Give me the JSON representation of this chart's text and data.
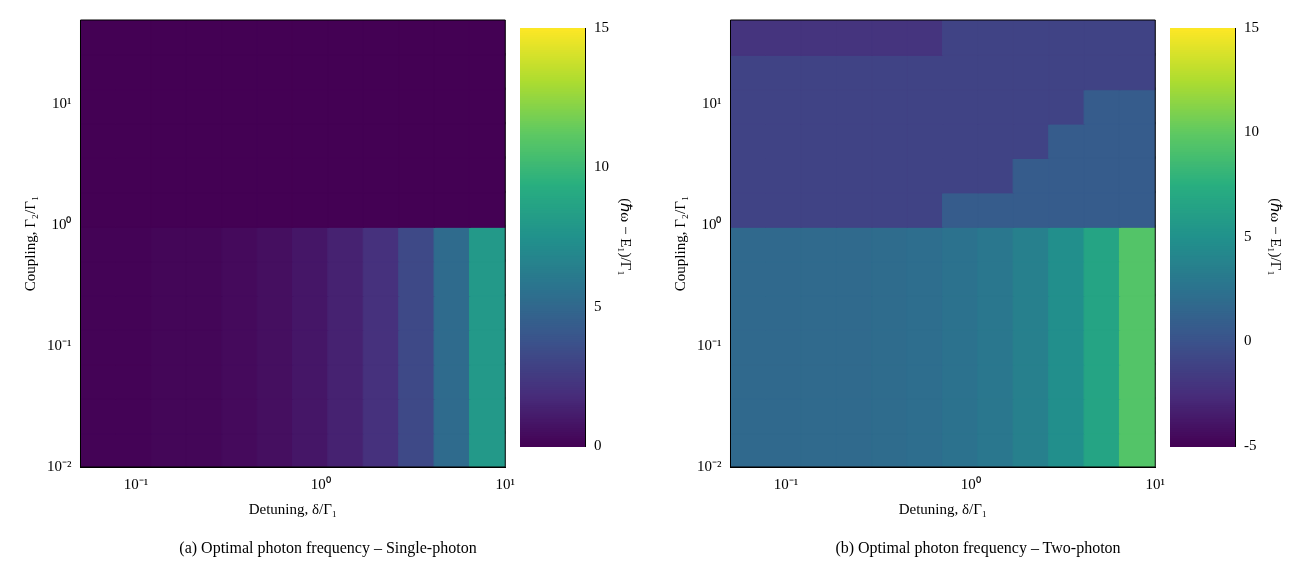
{
  "chart_data": [
    {
      "type": "scatter",
      "marker": "square",
      "xlabel": "Detuning, δ/Γ₁",
      "ylabel": "Coupling, Γ₂/Γ₁",
      "clabel": "(ℏω − E₁)/Γ₁",
      "annotations": [
        "(a) Optimal photon frequency – Single-photon"
      ],
      "log": "xy",
      "x": [
        0.062,
        0.097,
        0.151,
        0.234,
        0.365,
        0.567,
        0.882,
        1.37,
        2.13,
        3.32,
        5.16,
        8.02
      ],
      "series": [
        {
          "values": [
            36,
            36,
            36,
            36,
            36,
            36,
            36,
            36,
            36,
            36,
            36,
            36
          ],
          "cvalues": [
            0,
            0,
            0,
            0,
            0,
            0,
            0,
            0,
            0,
            0,
            0,
            0
          ],
          "colors": [
            "#440154",
            "#440154",
            "#440154",
            "#440154",
            "#440154",
            "#440154",
            "#440154",
            "#440154",
            "#440154",
            "#440154",
            "#440154",
            "#440154"
          ]
        },
        {
          "values": [
            18.7,
            18.7,
            18.7,
            18.7,
            18.7,
            18.7,
            18.7,
            18.7,
            18.7,
            18.7,
            18.7,
            18.7
          ],
          "cvalues": [
            0,
            0,
            0,
            0,
            0,
            0,
            0,
            0,
            0,
            0,
            0,
            0
          ],
          "colors": [
            "#440154",
            "#440154",
            "#440154",
            "#440154",
            "#440154",
            "#440154",
            "#440154",
            "#440154",
            "#440154",
            "#440154",
            "#440154",
            "#440154"
          ]
        },
        {
          "values": [
            9.72,
            9.72,
            9.72,
            9.72,
            9.72,
            9.72,
            9.72,
            9.72,
            9.72,
            9.72,
            9.72,
            9.72
          ],
          "cvalues": [
            0,
            0,
            0,
            0,
            0,
            0,
            0,
            0,
            0,
            0,
            0,
            0
          ],
          "colors": [
            "#440154",
            "#440154",
            "#440154",
            "#440154",
            "#440154",
            "#440154",
            "#440154",
            "#440154",
            "#440154",
            "#440154",
            "#440154",
            "#440154"
          ]
        },
        {
          "values": [
            5.05,
            5.05,
            5.05,
            5.05,
            5.05,
            5.05,
            5.05,
            5.05,
            5.05,
            5.05,
            5.05,
            5.05
          ],
          "cvalues": [
            0,
            0,
            0,
            0,
            0,
            0,
            0,
            0,
            0,
            0,
            0,
            0
          ],
          "colors": [
            "#440154",
            "#440154",
            "#440154",
            "#440154",
            "#440154",
            "#440154",
            "#440154",
            "#440154",
            "#440154",
            "#440154",
            "#440154",
            "#440154"
          ]
        },
        {
          "values": [
            2.62,
            2.62,
            2.62,
            2.62,
            2.62,
            2.62,
            2.62,
            2.62,
            2.62,
            2.62,
            2.62,
            2.62
          ],
          "cvalues": [
            0,
            0,
            0,
            0,
            0,
            0,
            0,
            0,
            0,
            0,
            0,
            0
          ],
          "colors": [
            "#440154",
            "#440154",
            "#440154",
            "#440154",
            "#440154",
            "#440154",
            "#440154",
            "#440154",
            "#440154",
            "#440154",
            "#440154",
            "#440154"
          ]
        },
        {
          "values": [
            1.36,
            1.36,
            1.36,
            1.36,
            1.36,
            1.36,
            1.36,
            1.36,
            1.36,
            1.36,
            1.36,
            1.36
          ],
          "cvalues": [
            0,
            0,
            0,
            0,
            0,
            0,
            0,
            0,
            0,
            0,
            0,
            0
          ],
          "colors": [
            "#440154",
            "#440154",
            "#440154",
            "#440154",
            "#440154",
            "#440154",
            "#440154",
            "#440154",
            "#440154",
            "#440154",
            "#440154",
            "#440154"
          ]
        },
        {
          "values": [
            0.708,
            0.708,
            0.708,
            0.708,
            0.708,
            0.708,
            0.708,
            0.708,
            0.708,
            0.708,
            0.708,
            0.708
          ],
          "cvalues": [
            0.1,
            0.1,
            0.2,
            0.2,
            0.4,
            0.6,
            0.9,
            1.4,
            2.1,
            3.3,
            5.2,
            8
          ],
          "colors": [
            "#440356",
            "#440356",
            "#440658",
            "#440658",
            "#450a5c",
            "#450f60",
            "#451667",
            "#462271",
            "#46317d",
            "#3e4987",
            "#2f6b8d",
            "#239989"
          ]
        },
        {
          "values": [
            0.367,
            0.367,
            0.367,
            0.367,
            0.367,
            0.367,
            0.367,
            0.367,
            0.367,
            0.367,
            0.367,
            0.367
          ],
          "cvalues": [
            0.1,
            0.1,
            0.2,
            0.2,
            0.4,
            0.6,
            0.9,
            1.4,
            2.1,
            3.3,
            5.2,
            8
          ],
          "colors": [
            "#440356",
            "#440356",
            "#440658",
            "#440658",
            "#450a5c",
            "#450f60",
            "#451667",
            "#462271",
            "#46317d",
            "#3e4987",
            "#2f6b8d",
            "#239989"
          ]
        },
        {
          "values": [
            0.191,
            0.191,
            0.191,
            0.191,
            0.191,
            0.191,
            0.191,
            0.191,
            0.191,
            0.191,
            0.191,
            0.191
          ],
          "cvalues": [
            0.1,
            0.1,
            0.2,
            0.2,
            0.4,
            0.6,
            0.9,
            1.4,
            2.1,
            3.3,
            5.2,
            8
          ],
          "colors": [
            "#440356",
            "#440356",
            "#440658",
            "#440658",
            "#450a5c",
            "#450f60",
            "#451667",
            "#462271",
            "#46317d",
            "#3e4987",
            "#2f6b8d",
            "#239989"
          ]
        },
        {
          "values": [
            0.0991,
            0.0991,
            0.0991,
            0.0991,
            0.0991,
            0.0991,
            0.0991,
            0.0991,
            0.0991,
            0.0991,
            0.0991,
            0.0991
          ],
          "cvalues": [
            0.1,
            0.1,
            0.2,
            0.2,
            0.4,
            0.6,
            0.9,
            1.4,
            2.1,
            3.3,
            5.2,
            8
          ],
          "colors": [
            "#440356",
            "#440356",
            "#440658",
            "#440658",
            "#450a5c",
            "#450f60",
            "#451667",
            "#462271",
            "#46317d",
            "#3e4987",
            "#2f6b8d",
            "#239989"
          ]
        },
        {
          "values": [
            0.0515,
            0.0515,
            0.0515,
            0.0515,
            0.0515,
            0.0515,
            0.0515,
            0.0515,
            0.0515,
            0.0515,
            0.0515,
            0.0515
          ],
          "cvalues": [
            0.1,
            0.1,
            0.2,
            0.2,
            0.4,
            0.6,
            0.9,
            1.4,
            2.1,
            3.3,
            5.2,
            8
          ],
          "colors": [
            "#440356",
            "#440356",
            "#440658",
            "#440658",
            "#450a5c",
            "#450f60",
            "#451667",
            "#462271",
            "#46317d",
            "#3e4987",
            "#2f6b8d",
            "#239989"
          ]
        },
        {
          "values": [
            0.0267,
            0.0267,
            0.0267,
            0.0267,
            0.0267,
            0.0267,
            0.0267,
            0.0267,
            0.0267,
            0.0267,
            0.0267,
            0.0267
          ],
          "cvalues": [
            0.1,
            0.1,
            0.2,
            0.2,
            0.4,
            0.6,
            0.9,
            1.4,
            2.1,
            3.3,
            5.2,
            8
          ],
          "colors": [
            "#440356",
            "#440356",
            "#440658",
            "#440658",
            "#450a5c",
            "#450f60",
            "#451667",
            "#462271",
            "#46317d",
            "#3e4987",
            "#2f6b8d",
            "#239989"
          ]
        },
        {
          "values": [
            0.0139,
            0.0139,
            0.0139,
            0.0139,
            0.0139,
            0.0139,
            0.0139,
            0.0139,
            0.0139,
            0.0139,
            0.0139,
            0.0139
          ],
          "cvalues": [
            0.1,
            0.1,
            0.2,
            0.2,
            0.4,
            0.6,
            0.9,
            1.4,
            2.1,
            3.3,
            5.2,
            8
          ],
          "colors": [
            "#440356",
            "#440356",
            "#440658",
            "#440658",
            "#450a5c",
            "#450f60",
            "#451667",
            "#462271",
            "#46317d",
            "#3e4987",
            "#2f6b8d",
            "#239989"
          ]
        }
      ],
      "clim": [
        0,
        15
      ],
      "cticks": [
        0,
        5,
        10,
        15
      ],
      "xlim": [
        0.05,
        10
      ],
      "ylim": [
        0.01,
        50
      ],
      "xticks": [
        {
          "value": 0.1,
          "label": "10⁻¹"
        },
        {
          "value": 1,
          "label": "10⁰"
        },
        {
          "value": 10,
          "label": "10¹"
        }
      ],
      "yticks": [
        {
          "value": 0.01,
          "label": "10⁻²"
        },
        {
          "value": 0.1,
          "label": "10⁻¹"
        },
        {
          "value": 1,
          "label": "10⁰"
        },
        {
          "value": 10,
          "label": "10¹"
        }
      ]
    },
    {
      "type": "scatter",
      "marker": "square",
      "xlabel": "Detuning, δ/Γ₁",
      "ylabel": "Coupling, Γ₂/Γ₁",
      "clabel": "(ℏω − E₁)/Γ₁",
      "annotations": [
        "(b) Optimal photon frequency – Two-photon"
      ],
      "log": "xy",
      "x": [
        0.062,
        0.097,
        0.151,
        0.234,
        0.365,
        0.567,
        0.882,
        1.37,
        2.13,
        3.32,
        5.16,
        8.02
      ],
      "series": [
        {
          "values": [
            36,
            36,
            36,
            36,
            36,
            36,
            36,
            36,
            36,
            36,
            36,
            36
          ],
          "cvalues": [
            -2,
            -2,
            -2,
            -2,
            -2,
            -2,
            -1,
            -1,
            -1,
            -1,
            -1,
            -1
          ],
          "colors": [
            "#45347e",
            "#45347e",
            "#45347e",
            "#45347e",
            "#45347e",
            "#45347e",
            "#404385",
            "#404385",
            "#404385",
            "#404385",
            "#404385",
            "#404385"
          ]
        },
        {
          "values": [
            18.7,
            18.7,
            18.7,
            18.7,
            18.7,
            18.7,
            18.7,
            18.7,
            18.7,
            18.7,
            18.7,
            18.7
          ],
          "cvalues": [
            -1,
            -1,
            -1,
            -1,
            -1,
            -1,
            -1,
            -1,
            -1,
            -1,
            -1,
            -1
          ],
          "colors": [
            "#404385",
            "#404385",
            "#404385",
            "#404385",
            "#404385",
            "#404385",
            "#404385",
            "#404385",
            "#404385",
            "#404385",
            "#404385",
            "#404385"
          ]
        },
        {
          "values": [
            9.72,
            9.72,
            9.72,
            9.72,
            9.72,
            9.72,
            9.72,
            9.72,
            9.72,
            9.72,
            9.72,
            9.72
          ],
          "cvalues": [
            -1,
            -1,
            -1,
            -1,
            -1,
            -1,
            -1,
            -1,
            -1,
            -1,
            0.8,
            0.8
          ],
          "colors": [
            "#404385",
            "#404385",
            "#404385",
            "#404385",
            "#404385",
            "#404385",
            "#404385",
            "#404385",
            "#404385",
            "#404385",
            "#365c8c",
            "#365c8c"
          ]
        },
        {
          "values": [
            5.05,
            5.05,
            5.05,
            5.05,
            5.05,
            5.05,
            5.05,
            5.05,
            5.05,
            5.05,
            5.05,
            5.05
          ],
          "cvalues": [
            -1,
            -1,
            -1,
            -1,
            -1,
            -1,
            -1,
            -1,
            -1,
            0.8,
            0.8,
            0.8
          ],
          "colors": [
            "#404385",
            "#404385",
            "#404385",
            "#404385",
            "#404385",
            "#404385",
            "#404385",
            "#404385",
            "#404385",
            "#365c8c",
            "#365c8c",
            "#365c8c"
          ]
        },
        {
          "values": [
            2.62,
            2.62,
            2.62,
            2.62,
            2.62,
            2.62,
            2.62,
            2.62,
            2.62,
            2.62,
            2.62,
            2.62
          ],
          "cvalues": [
            -1,
            -1,
            -1,
            -1,
            -1,
            -1,
            -1,
            -1,
            0.8,
            0.8,
            0.8,
            0.8
          ],
          "colors": [
            "#404385",
            "#404385",
            "#404385",
            "#404385",
            "#404385",
            "#404385",
            "#404385",
            "#404385",
            "#365c8c",
            "#365c8c",
            "#365c8c",
            "#365c8c"
          ]
        },
        {
          "values": [
            1.36,
            1.36,
            1.36,
            1.36,
            1.36,
            1.36,
            1.36,
            1.36,
            1.36,
            1.36,
            1.36,
            1.36
          ],
          "cvalues": [
            -1,
            -1,
            -1,
            -1,
            -1,
            -1,
            0.8,
            0.8,
            0.8,
            0.8,
            0.8,
            0.8
          ],
          "colors": [
            "#404385",
            "#404385",
            "#404385",
            "#404385",
            "#404385",
            "#404385",
            "#365c8c",
            "#365c8c",
            "#365c8c",
            "#365c8c",
            "#365c8c",
            "#365c8c"
          ]
        },
        {
          "values": [
            0.708,
            0.708,
            0.708,
            0.708,
            0.708,
            0.708,
            0.708,
            0.708,
            0.708,
            0.708,
            0.708,
            0.708
          ],
          "cvalues": [
            1.8,
            1.8,
            1.9,
            1.9,
            2,
            2.2,
            2.5,
            2.9,
            3.6,
            4.8,
            6.6,
            9.5
          ],
          "colors": [
            "#30698d",
            "#30698d",
            "#306a8d",
            "#306a8d",
            "#2f6c8d",
            "#2e6e8e",
            "#2c728e",
            "#2a778e",
            "#27808d",
            "#228f8c",
            "#25a484",
            "#53c468"
          ]
        },
        {
          "values": [
            0.367,
            0.367,
            0.367,
            0.367,
            0.367,
            0.367,
            0.367,
            0.367,
            0.367,
            0.367,
            0.367,
            0.367
          ],
          "cvalues": [
            1.8,
            1.8,
            1.9,
            1.9,
            2,
            2.2,
            2.5,
            2.9,
            3.6,
            4.8,
            6.6,
            9.5
          ],
          "colors": [
            "#30698d",
            "#30698d",
            "#306a8d",
            "#306a8d",
            "#2f6c8d",
            "#2e6e8e",
            "#2c728e",
            "#2a778e",
            "#27808d",
            "#228f8c",
            "#25a484",
            "#53c468"
          ]
        },
        {
          "values": [
            0.191,
            0.191,
            0.191,
            0.191,
            0.191,
            0.191,
            0.191,
            0.191,
            0.191,
            0.191,
            0.191,
            0.191
          ],
          "cvalues": [
            1.8,
            1.8,
            1.9,
            1.9,
            2,
            2.2,
            2.5,
            2.9,
            3.6,
            4.8,
            6.6,
            9.5
          ],
          "colors": [
            "#30698d",
            "#30698d",
            "#306a8d",
            "#306a8d",
            "#2f6c8d",
            "#2e6e8e",
            "#2c728e",
            "#2a778e",
            "#27808d",
            "#228f8c",
            "#25a484",
            "#53c468"
          ]
        },
        {
          "values": [
            0.0991,
            0.0991,
            0.0991,
            0.0991,
            0.0991,
            0.0991,
            0.0991,
            0.0991,
            0.0991,
            0.0991,
            0.0991,
            0.0991
          ],
          "cvalues": [
            1.8,
            1.8,
            1.9,
            1.9,
            2,
            2.2,
            2.5,
            2.9,
            3.6,
            4.8,
            6.6,
            9.5
          ],
          "colors": [
            "#30698d",
            "#30698d",
            "#306a8d",
            "#306a8d",
            "#2f6c8d",
            "#2e6e8e",
            "#2c728e",
            "#2a778e",
            "#27808d",
            "#228f8c",
            "#25a484",
            "#53c468"
          ]
        },
        {
          "values": [
            0.0515,
            0.0515,
            0.0515,
            0.0515,
            0.0515,
            0.0515,
            0.0515,
            0.0515,
            0.0515,
            0.0515,
            0.0515,
            0.0515
          ],
          "cvalues": [
            1.8,
            1.8,
            1.9,
            1.9,
            2,
            2.2,
            2.5,
            2.9,
            3.6,
            4.8,
            6.6,
            9.5
          ],
          "colors": [
            "#30698d",
            "#30698d",
            "#306a8d",
            "#306a8d",
            "#2f6c8d",
            "#2e6e8e",
            "#2c728e",
            "#2a778e",
            "#27808d",
            "#228f8c",
            "#25a484",
            "#53c468"
          ]
        },
        {
          "values": [
            0.0267,
            0.0267,
            0.0267,
            0.0267,
            0.0267,
            0.0267,
            0.0267,
            0.0267,
            0.0267,
            0.0267,
            0.0267,
            0.0267
          ],
          "cvalues": [
            1.8,
            1.8,
            1.9,
            1.9,
            2,
            2.2,
            2.5,
            2.9,
            3.6,
            4.8,
            6.6,
            9.5
          ],
          "colors": [
            "#30698d",
            "#30698d",
            "#306a8d",
            "#306a8d",
            "#2f6c8d",
            "#2e6e8e",
            "#2c728e",
            "#2a778e",
            "#27808d",
            "#228f8c",
            "#25a484",
            "#53c468"
          ]
        },
        {
          "values": [
            0.0139,
            0.0139,
            0.0139,
            0.0139,
            0.0139,
            0.0139,
            0.0139,
            0.0139,
            0.0139,
            0.0139,
            0.0139,
            0.0139
          ],
          "cvalues": [
            1.8,
            1.8,
            1.9,
            1.9,
            2,
            2.2,
            2.5,
            2.9,
            3.6,
            4.8,
            6.6,
            9.5
          ],
          "colors": [
            "#30698d",
            "#30698d",
            "#306a8d",
            "#306a8d",
            "#2f6c8d",
            "#2e6e8e",
            "#2c728e",
            "#2a778e",
            "#27808d",
            "#228f8c",
            "#25a484",
            "#53c468"
          ]
        }
      ],
      "clim": [
        -5,
        15
      ],
      "cticks": [
        -5,
        0,
        5,
        10,
        15
      ],
      "xlim": [
        0.05,
        10
      ],
      "ylim": [
        0.01,
        50
      ],
      "xticks": [
        {
          "value": 0.1,
          "label": "10⁻¹"
        },
        {
          "value": 1,
          "label": "10⁰"
        },
        {
          "value": 10,
          "label": "10¹"
        }
      ],
      "yticks": [
        {
          "value": 0.01,
          "label": "10⁻²"
        },
        {
          "value": 0.1,
          "label": "10⁻¹"
        },
        {
          "value": 1,
          "label": "10⁰"
        },
        {
          "value": 10,
          "label": "10¹"
        }
      ]
    }
  ]
}
